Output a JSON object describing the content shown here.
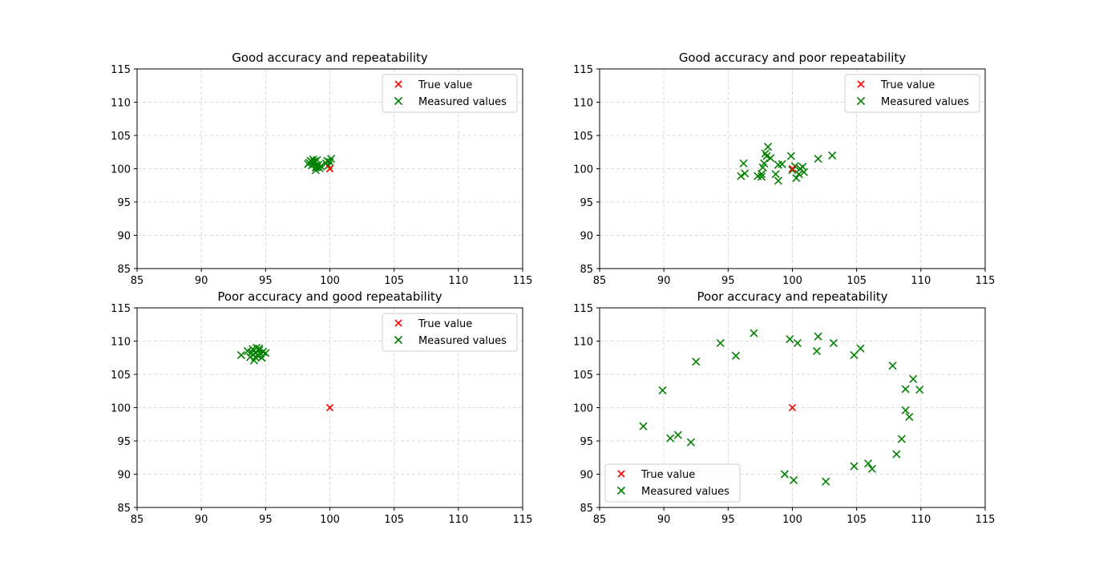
{
  "colors": {
    "true_value": "#ff0000",
    "measured": "#008000"
  },
  "chart_data": [
    {
      "type": "scatter",
      "title": "Good accuracy and repeatability",
      "xlim": [
        85,
        115
      ],
      "ylim": [
        85,
        115
      ],
      "xticks": [
        85,
        90,
        95,
        100,
        105,
        110,
        115
      ],
      "yticks": [
        85,
        90,
        95,
        100,
        105,
        110,
        115
      ],
      "grid": true,
      "legend_position": "upper right",
      "series": [
        {
          "name": "True value",
          "marker": "x",
          "color": "#ff0000",
          "points": [
            [
              100,
              100
            ]
          ]
        },
        {
          "name": "Measured values",
          "marker": "x",
          "color": "#008000",
          "points": [
            [
              98.3,
              100.7
            ],
            [
              98.5,
              101.2
            ],
            [
              98.6,
              100.5
            ],
            [
              98.7,
              101.4
            ],
            [
              98.8,
              100.9
            ],
            [
              98.9,
              100.2
            ],
            [
              98.9,
              99.8
            ],
            [
              99.0,
              101.3
            ],
            [
              99.1,
              100.6
            ],
            [
              99.2,
              100.1
            ],
            [
              98.6,
              101.0
            ],
            [
              99.3,
              100.4
            ],
            [
              98.4,
              100.9
            ],
            [
              99.0,
              100.3
            ],
            [
              99.8,
              101.2
            ],
            [
              99.9,
              100.5
            ],
            [
              100.0,
              101.0
            ],
            [
              100.1,
              101.5
            ],
            [
              99.7,
              100.8
            ],
            [
              98.8,
              101.1
            ]
          ]
        }
      ]
    },
    {
      "type": "scatter",
      "title": "Good accuracy and poor repeatability",
      "xlim": [
        85,
        115
      ],
      "ylim": [
        85,
        115
      ],
      "xticks": [
        85,
        90,
        95,
        100,
        105,
        110,
        115
      ],
      "yticks": [
        85,
        90,
        95,
        100,
        105,
        110,
        115
      ],
      "grid": true,
      "legend_position": "upper right",
      "series": [
        {
          "name": "True value",
          "marker": "x",
          "color": "#ff0000",
          "points": [
            [
              100,
              100
            ]
          ]
        },
        {
          "name": "Measured values",
          "marker": "x",
          "color": "#008000",
          "points": [
            [
              96.0,
              98.9
            ],
            [
              96.2,
              100.8
            ],
            [
              96.3,
              99.3
            ],
            [
              97.3,
              98.9
            ],
            [
              97.6,
              99.2
            ],
            [
              97.7,
              100.2
            ],
            [
              97.8,
              100.8
            ],
            [
              97.9,
              102.3
            ],
            [
              98.0,
              101.9
            ],
            [
              98.1,
              103.3
            ],
            [
              98.3,
              101.6
            ],
            [
              98.7,
              99.2
            ],
            [
              98.9,
              98.2
            ],
            [
              98.9,
              100.6
            ],
            [
              99.2,
              100.7
            ],
            [
              99.9,
              101.9
            ],
            [
              100.0,
              99.8
            ],
            [
              100.2,
              100.4
            ],
            [
              100.3,
              98.6
            ],
            [
              100.5,
              99.2
            ],
            [
              100.6,
              100.0
            ],
            [
              100.8,
              100.3
            ],
            [
              100.9,
              99.5
            ],
            [
              102.0,
              101.5
            ],
            [
              103.1,
              102.0
            ],
            [
              97.6,
              98.8
            ]
          ]
        }
      ]
    },
    {
      "type": "scatter",
      "title": "Poor accuracy and good repeatability",
      "xlim": [
        85,
        115
      ],
      "ylim": [
        85,
        115
      ],
      "xticks": [
        85,
        90,
        95,
        100,
        105,
        110,
        115
      ],
      "yticks": [
        85,
        90,
        95,
        100,
        105,
        110,
        115
      ],
      "grid": true,
      "legend_position": "upper right",
      "series": [
        {
          "name": "True value",
          "marker": "x",
          "color": "#ff0000",
          "points": [
            [
              100,
              100
            ]
          ]
        },
        {
          "name": "Measured values",
          "marker": "x",
          "color": "#008000",
          "points": [
            [
              93.1,
              107.9
            ],
            [
              93.6,
              108.5
            ],
            [
              93.8,
              107.6
            ],
            [
              94.0,
              108.8
            ],
            [
              94.1,
              107.1
            ],
            [
              94.2,
              108.2
            ],
            [
              94.3,
              109.0
            ],
            [
              94.4,
              107.8
            ],
            [
              94.5,
              108.6
            ],
            [
              94.6,
              108.1
            ],
            [
              94.7,
              107.5
            ],
            [
              94.8,
              108.4
            ],
            [
              95.0,
              108.2
            ],
            [
              94.2,
              107.6
            ],
            [
              94.5,
              108.9
            ],
            [
              93.9,
              108.3
            ]
          ]
        }
      ]
    },
    {
      "type": "scatter",
      "title": "Poor accuracy and repeatability",
      "xlim": [
        85,
        115
      ],
      "ylim": [
        85,
        115
      ],
      "xticks": [
        85,
        90,
        95,
        100,
        105,
        110,
        115
      ],
      "yticks": [
        85,
        90,
        95,
        100,
        105,
        110,
        115
      ],
      "grid": true,
      "legend_position": "lower left",
      "series": [
        {
          "name": "True value",
          "marker": "x",
          "color": "#ff0000",
          "points": [
            [
              100,
              100
            ]
          ]
        },
        {
          "name": "Measured values",
          "marker": "x",
          "color": "#008000",
          "points": [
            [
              88.4,
              97.2
            ],
            [
              89.9,
              102.6
            ],
            [
              90.5,
              95.4
            ],
            [
              91.1,
              95.9
            ],
            [
              92.1,
              94.8
            ],
            [
              92.5,
              106.9
            ],
            [
              94.4,
              109.7
            ],
            [
              95.6,
              107.8
            ],
            [
              97.0,
              111.2
            ],
            [
              99.4,
              90.0
            ],
            [
              99.8,
              110.3
            ],
            [
              100.1,
              89.1
            ],
            [
              100.4,
              109.7
            ],
            [
              101.9,
              108.5
            ],
            [
              102.0,
              110.7
            ],
            [
              102.6,
              88.9
            ],
            [
              103.2,
              109.7
            ],
            [
              104.8,
              91.2
            ],
            [
              104.8,
              107.9
            ],
            [
              105.3,
              108.9
            ],
            [
              105.9,
              91.6
            ],
            [
              106.2,
              90.8
            ],
            [
              107.8,
              106.3
            ],
            [
              108.1,
              93.0
            ],
            [
              108.5,
              95.3
            ],
            [
              108.8,
              102.8
            ],
            [
              108.8,
              99.6
            ],
            [
              109.1,
              98.6
            ],
            [
              109.4,
              104.3
            ],
            [
              109.9,
              102.7
            ]
          ]
        }
      ]
    }
  ]
}
